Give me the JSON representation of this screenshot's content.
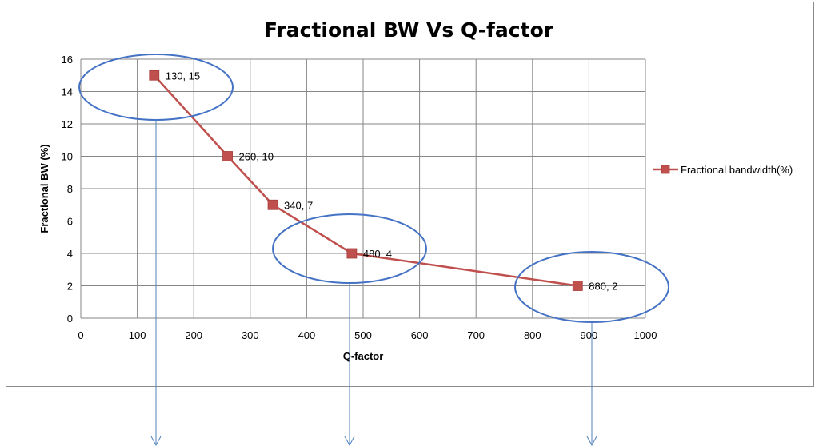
{
  "chart_data": {
    "type": "line",
    "title": "Fractional BW Vs Q-factor",
    "xlabel": "Q-factor",
    "ylabel": "Fractional BW (%)",
    "xlim": [
      0,
      1000
    ],
    "ylim": [
      0,
      16
    ],
    "xticks": [
      "0",
      "100",
      "200",
      "300",
      "400",
      "500",
      "600",
      "700",
      "800",
      "900",
      "1000"
    ],
    "yticks": [
      "0",
      "2",
      "4",
      "6",
      "8",
      "10",
      "12",
      "14",
      "16"
    ],
    "grid": true,
    "legend_position": "right",
    "series": [
      {
        "name": "Fractional bandwidth(%)",
        "color": "#c0504d",
        "marker": "square",
        "points": [
          {
            "x": 130,
            "y": 15,
            "label": "130, 15"
          },
          {
            "x": 260,
            "y": 10,
            "label": "260, 10"
          },
          {
            "x": 340,
            "y": 7,
            "label": "340, 7"
          },
          {
            "x": 480,
            "y": 4,
            "label": "480, 4"
          },
          {
            "x": 880,
            "y": 2,
            "label": "880, 2"
          }
        ]
      }
    ],
    "annotations": {
      "ellipse_color": "#4472c4",
      "arrow_color": "#4f81bd",
      "highlighted_points": [
        {
          "x": 130,
          "y": 15
        },
        {
          "x": 480,
          "y": 4
        },
        {
          "x": 880,
          "y": 2
        }
      ]
    }
  }
}
